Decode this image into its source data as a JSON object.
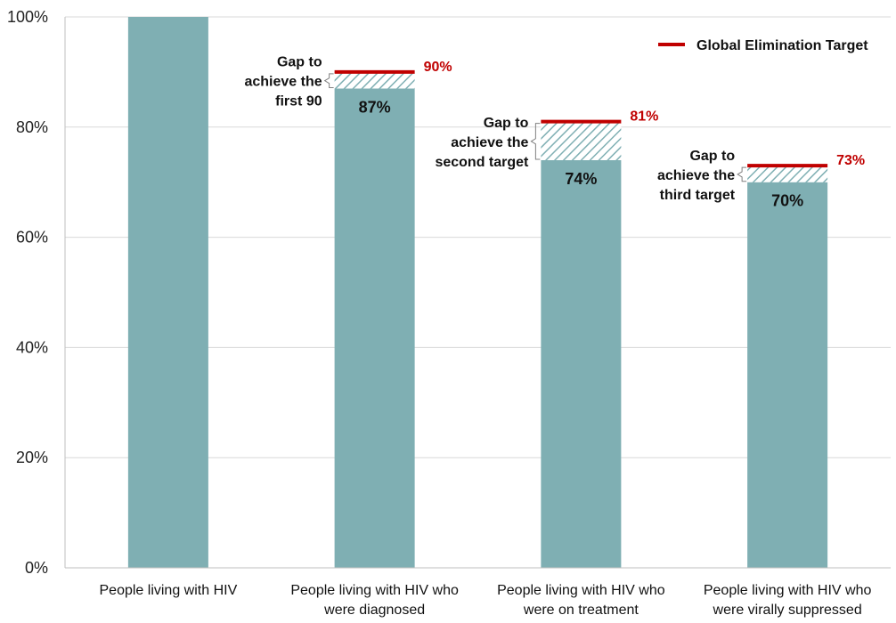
{
  "chart_data": {
    "type": "bar",
    "categories": [
      [
        "People living with HIV"
      ],
      [
        "People living with HIV who",
        "were diagnosed"
      ],
      [
        "People living with HIV who",
        "were on treatment"
      ],
      [
        "People living with HIV who",
        "were virally suppressed"
      ]
    ],
    "values": [
      100,
      87,
      74,
      70
    ],
    "value_labels": [
      "",
      "87%",
      "74%",
      "70%"
    ],
    "targets": [
      null,
      90,
      81,
      73
    ],
    "target_labels": [
      "",
      "90%",
      "81%",
      "73%"
    ],
    "gap_labels": [
      [],
      [
        "Gap to",
        "achieve the",
        "first 90"
      ],
      [
        "Gap to",
        "achieve the",
        "second target"
      ],
      [
        "Gap to",
        "achieve the",
        "third target"
      ]
    ],
    "yticks": [
      0,
      20,
      40,
      60,
      80,
      100
    ],
    "ytick_labels": [
      "0%",
      "20%",
      "40%",
      "60%",
      "80%",
      "100%"
    ],
    "ylim": [
      0,
      100
    ],
    "grid": true,
    "legend": {
      "label": "Global Elimination Target",
      "placement": "top-right"
    },
    "colors": {
      "bar": "#7FAFB3",
      "target": "#C00000",
      "grid": "#D9D9D9",
      "axis": "#BFBFBF"
    }
  }
}
